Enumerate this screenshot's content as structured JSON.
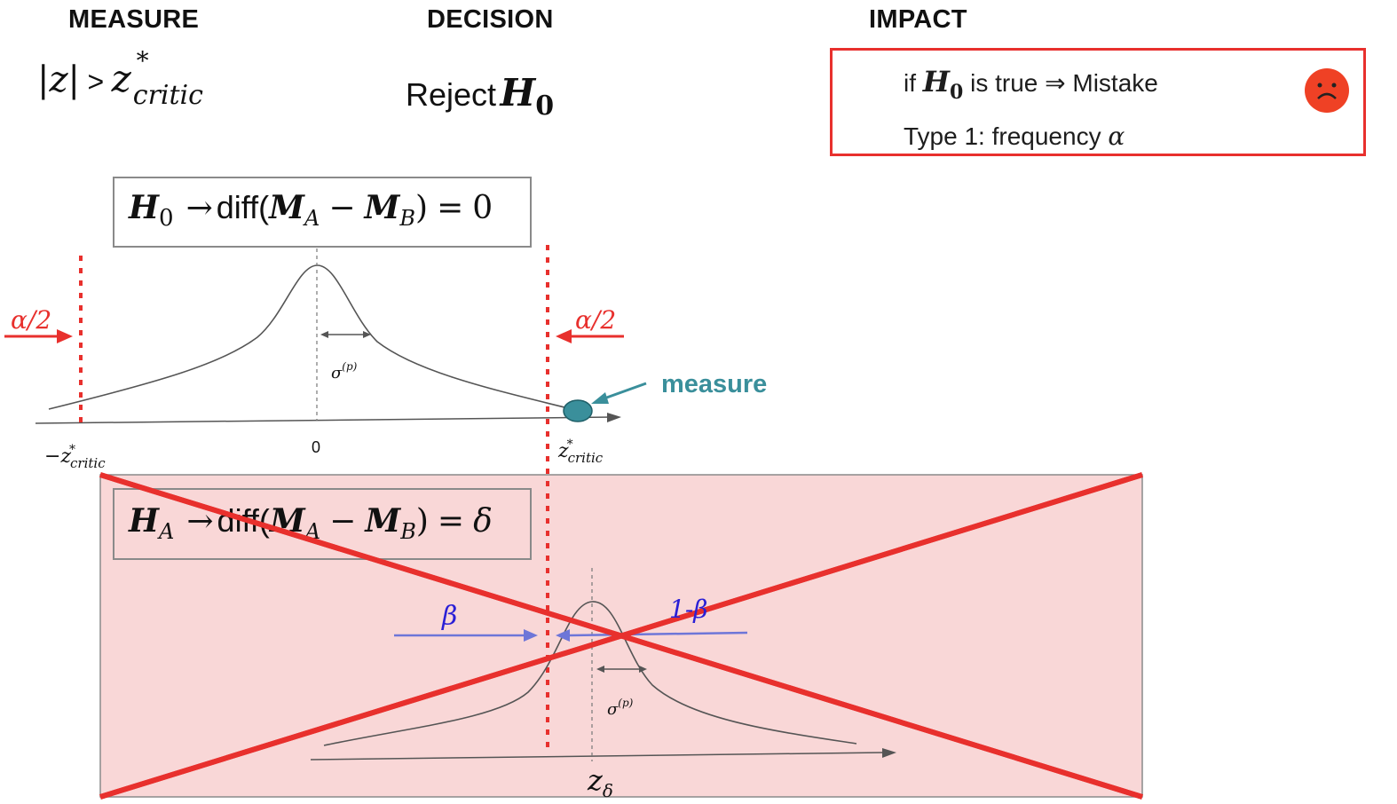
{
  "headers": {
    "measure": "MEASURE",
    "decision": "DECISION",
    "impact": "IMPACT"
  },
  "measure_formula": {
    "abs_z": "|z|",
    "gt": ">",
    "z": "z",
    "star": "*",
    "sub": "critic"
  },
  "decision": {
    "reject": "Reject",
    "h": "H",
    "h_sub": "0"
  },
  "impact": {
    "line1_prefix": "if",
    "h": "H",
    "h_sub": "0",
    "line1_suffix": "is true ⇒ Mistake",
    "line2_prefix": "Type 1: frequency",
    "alpha": "α",
    "face_icon": "sad-face-icon"
  },
  "h0_box": {
    "h": "H",
    "h_sub": "0",
    "arrow": "→",
    "diff": "diff(",
    "m": "M",
    "a_sub": "A",
    "minus": "−",
    "b_sub": "B",
    "close": ")",
    "eq": "=",
    "rhs": "0"
  },
  "ha_box": {
    "h": "H",
    "h_sub": "A",
    "arrow": "→",
    "diff": "diff(",
    "m": "M",
    "a_sub": "A",
    "minus": "−",
    "b_sub": "B",
    "close": ")",
    "eq": "=",
    "rhs": "δ"
  },
  "top_plot": {
    "alpha_left": "α/2",
    "alpha_right": "α/2",
    "sigma": "σ",
    "sigma_sup": "(p)",
    "zero": "0",
    "neg_z_minus": "−",
    "z": "z",
    "z_star": "*",
    "z_sub": "critic",
    "measure_label": "measure"
  },
  "bottom_plot": {
    "beta": "β",
    "one_minus_beta": "1-β",
    "sigma": "σ",
    "sigma_sup": "(p)",
    "z": "z",
    "z_sub": "δ"
  },
  "colors": {
    "red": "#e8302d",
    "teal": "#3a8f9b",
    "blue": "#2a1fd6",
    "arrow_blue": "#6e76d8",
    "pink_panel": "#f9d7d7",
    "curve": "#555555",
    "sad_face": "#ef4125"
  }
}
